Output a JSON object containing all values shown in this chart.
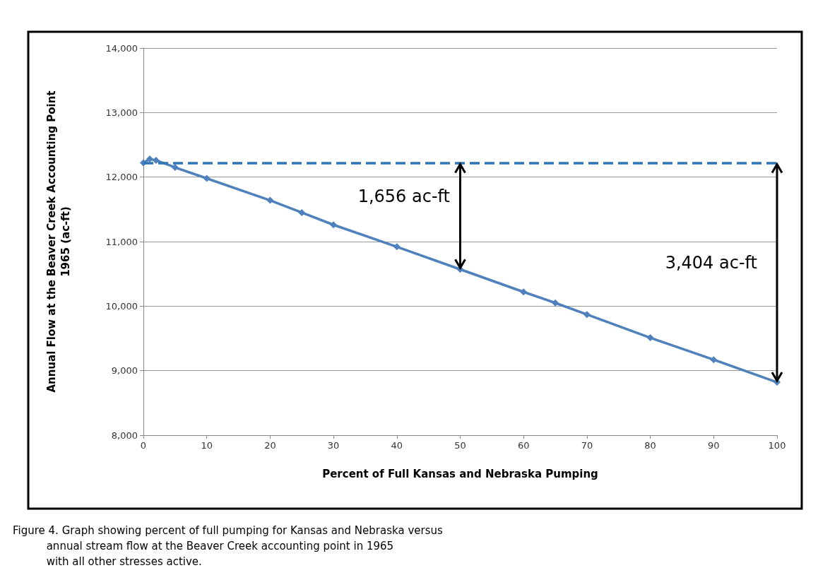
{
  "chart_data": {
    "type": "line",
    "xlabel": "Percent of Full Kansas and Nebraska Pumping",
    "ylabel": "Annual Flow at the Beaver Creek Accounting Point\n1965 (ac-ft)",
    "x": [
      0,
      1,
      2,
      5,
      10,
      20,
      25,
      30,
      40,
      50,
      60,
      65,
      70,
      80,
      90,
      100
    ],
    "series": [
      {
        "color": "#4f81bd",
        "values": [
          12220,
          12280,
          12260,
          12150,
          11980,
          11640,
          11450,
          11260,
          10920,
          10570,
          10220,
          10050,
          9870,
          9510,
          9170,
          8820
        ]
      }
    ],
    "xlim": [
      0,
      100
    ],
    "xticks": [
      0,
      10,
      20,
      30,
      40,
      50,
      60,
      70,
      80,
      90,
      100
    ],
    "ylim": [
      8000,
      14000
    ],
    "yticks": [
      {
        "value": 8000,
        "label": "8,000"
      },
      {
        "value": 9000,
        "label": "9,000"
      },
      {
        "value": 10000,
        "label": "10,000"
      },
      {
        "value": 11000,
        "label": "11,000"
      },
      {
        "value": 12000,
        "label": "12,000"
      },
      {
        "value": 13000,
        "label": "13,000"
      },
      {
        "value": 14000,
        "label": "14,000"
      }
    ],
    "ref_lines": [
      {
        "axis": "y",
        "value": 12220,
        "color": "#2e75b6",
        "line_style": "dashed"
      }
    ],
    "annotations": [
      "1,656 ac-ft",
      "3,404 ac-ft",
      "Figure 4. Graph showing percent of full pumping for Kansas and Nebraska versus\n          annual stream flow at the Beaver Creek accounting point in 1965\n          with all other stresses active."
    ],
    "grid": "y",
    "marker": "diamond",
    "line_style": "solid"
  }
}
